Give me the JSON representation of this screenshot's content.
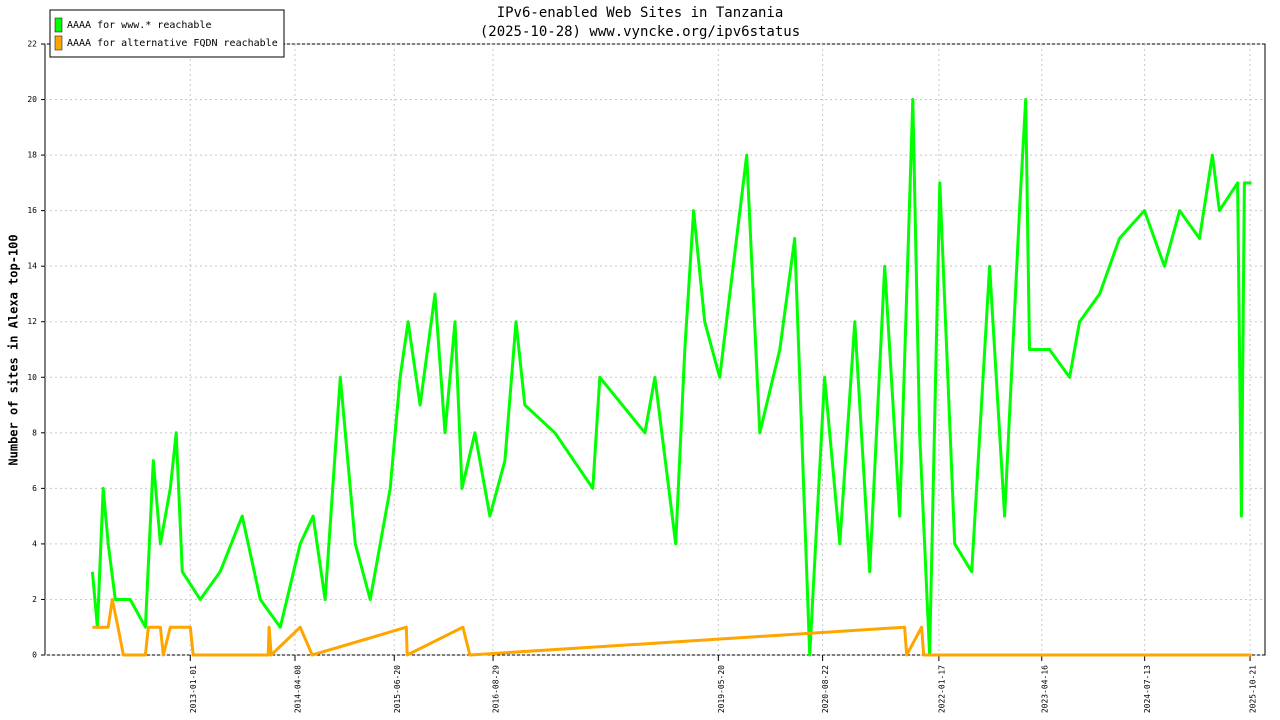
{
  "chart_data": {
    "type": "line",
    "title": "IPv6-enabled Web Sites in Tanzania",
    "subtitle": "(2025-10-28) www.vyncke.org/ipv6status",
    "y_label": "Number of sites in Alexa top-100",
    "xlim": [
      "2011-04-01",
      "2025-12-26"
    ],
    "xticks": [
      "2013-01-01",
      "2014-04-08",
      "2015-06-20",
      "2016-08-29",
      "2019-05-20",
      "2020-08-22",
      "2022-01-17",
      "2023-04-16",
      "2024-07-13",
      "2025-10-21"
    ],
    "ylim": [
      0,
      22
    ],
    "yticks": [
      0,
      2,
      4,
      6,
      8,
      10,
      12,
      14,
      16,
      18,
      20,
      22
    ],
    "grid": true,
    "legend": "top-left",
    "series": [
      {
        "name": "AAAA for www.* reachable",
        "color": "#00ff00",
        "x": [
          "2011-10-27",
          "2011-11-18",
          "2011-12-14",
          "2012-01-05",
          "2012-02-05",
          "2012-04-11",
          "2012-06-17",
          "2012-07-22",
          "2012-08-22",
          "2012-10-05",
          "2012-10-31",
          "2012-11-27",
          "2013-02-14",
          "2013-05-13",
          "2013-08-18",
          "2013-11-06",
          "2014-02-02",
          "2014-05-01",
          "2014-06-27",
          "2014-08-19",
          "2014-10-25",
          "2014-12-30",
          "2015-03-06",
          "2015-06-02",
          "2015-07-16",
          "2015-08-20",
          "2015-10-12",
          "2015-12-17",
          "2016-01-30",
          "2016-03-14",
          "2016-04-14",
          "2016-06-10",
          "2016-08-15",
          "2016-10-20",
          "2016-12-08",
          "2017-01-16",
          "2017-05-29",
          "2017-11-12",
          "2017-12-13",
          "2018-06-30",
          "2018-08-13",
          "2018-11-13",
          "2018-12-23",
          "2019-01-31",
          "2019-03-21",
          "2019-05-26",
          "2019-09-22",
          "2019-11-19",
          "2020-02-15",
          "2020-04-21",
          "2020-06-26",
          "2020-08-31",
          "2020-11-06",
          "2021-01-11",
          "2021-03-18",
          "2021-05-23",
          "2021-07-28",
          "2021-09-24",
          "2021-10-24",
          "2021-12-07",
          "2022-01-21",
          "2022-03-28",
          "2022-06-11",
          "2022-08-29",
          "2022-11-03",
          "2023-01-08",
          "2023-02-04",
          "2023-02-21",
          "2023-05-20",
          "2023-08-17",
          "2023-09-30",
          "2023-12-27",
          "2024-03-24",
          "2024-07-12",
          "2024-10-08",
          "2024-12-14",
          "2025-03-12",
          "2025-05-08",
          "2025-06-08",
          "2025-08-27",
          "2025-09-13",
          "2025-09-26",
          "2025-10-28"
        ],
        "values": [
          3,
          1,
          6,
          4,
          2,
          2,
          1,
          7,
          4,
          6,
          8,
          3,
          2,
          3,
          5,
          2,
          1,
          4,
          5,
          2,
          10,
          4,
          2,
          6,
          10,
          12,
          9,
          13,
          8,
          12,
          6,
          8,
          5,
          7,
          12,
          9,
          8,
          6,
          10,
          8,
          10,
          4,
          11,
          16,
          12,
          10,
          18,
          8,
          11,
          15,
          0,
          10,
          4,
          12,
          3,
          14,
          5,
          20,
          8,
          0,
          17,
          4,
          3,
          14,
          5,
          16,
          20,
          11,
          11,
          10,
          12,
          13,
          15,
          16,
          14,
          16,
          15,
          18,
          16,
          17,
          5,
          17,
          17
        ]
      },
      {
        "name": "AAAA for alternative FQDN reachable",
        "color": "#ffa500",
        "x": [
          "2011-10-27",
          "2012-01-05",
          "2012-01-23",
          "2012-02-17",
          "2012-03-12",
          "2012-06-17",
          "2012-06-30",
          "2012-08-22",
          "2012-09-04",
          "2012-10-05",
          "2013-01-01",
          "2013-01-14",
          "2013-12-11",
          "2013-12-15",
          "2013-12-24",
          "2014-05-01",
          "2014-06-23",
          "2015-08-12",
          "2015-08-16",
          "2016-04-18",
          "2016-05-19",
          "2021-08-19",
          "2021-08-28",
          "2021-11-02",
          "2021-11-11",
          "2025-10-28"
        ],
        "values": [
          1,
          1,
          2,
          1,
          0,
          0,
          1,
          1,
          0,
          1,
          1,
          0,
          0,
          1,
          0,
          1,
          0,
          1,
          0,
          1,
          0,
          1,
          0,
          1,
          0,
          0
        ]
      }
    ]
  }
}
